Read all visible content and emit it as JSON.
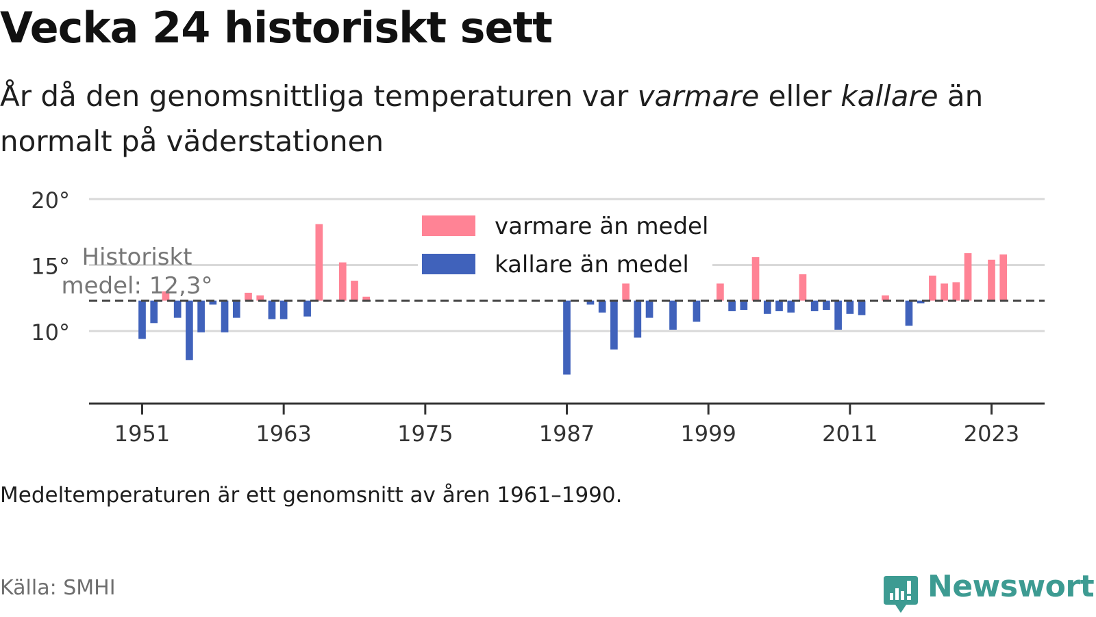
{
  "title": "Vecka 24 historiskt sett",
  "subtitle": {
    "part1": "År då den genomsnittliga temperaturen var ",
    "warm_word": "varmare",
    "part2": " eller ",
    "cold_word": "kallare",
    "part3": " än normalt på väderstationen"
  },
  "note": "Medeltemperaturen är ett genomsnitt av åren 1961–1990.",
  "source": "Källa: SMHI",
  "brand": "Newsworthy",
  "colors": {
    "warm": "#ff8395",
    "cold": "#4062bb",
    "grid": "#d9d9d9",
    "axis": "#333333",
    "reference": "#444444",
    "brand": "#3d9b92"
  },
  "chart_data": {
    "type": "bar",
    "baseline": 12.3,
    "baseline_label": [
      "Historiskt",
      "medel: 12,3°"
    ],
    "ylim": [
      4.5,
      20
    ],
    "yticks": [
      10,
      15,
      20
    ],
    "ytick_labels": [
      "10°",
      "15°",
      "20°"
    ],
    "xlim": [
      1946.5,
      2027.5
    ],
    "xticks": [
      1951,
      1963,
      1975,
      1987,
      1999,
      2011,
      2023
    ],
    "xtick_labels": [
      "1951",
      "1963",
      "1975",
      "1987",
      "1999",
      "2011",
      "2023"
    ],
    "legend": [
      {
        "key": "warm",
        "label": "varmare än medel"
      },
      {
        "key": "cold",
        "label": "kallare än medel"
      }
    ],
    "legend_position": "top-center",
    "series": [
      {
        "year": 1951,
        "value": 9.4
      },
      {
        "year": 1952,
        "value": 10.6
      },
      {
        "year": 1953,
        "value": 13.0
      },
      {
        "year": 1954,
        "value": 11.0
      },
      {
        "year": 1955,
        "value": 7.8
      },
      {
        "year": 1956,
        "value": 9.9
      },
      {
        "year": 1957,
        "value": 12.0
      },
      {
        "year": 1958,
        "value": 9.9
      },
      {
        "year": 1959,
        "value": 11.0
      },
      {
        "year": 1960,
        "value": 12.9
      },
      {
        "year": 1961,
        "value": 12.7
      },
      {
        "year": 1962,
        "value": 10.9
      },
      {
        "year": 1963,
        "value": 10.9
      },
      {
        "year": 1965,
        "value": 11.1
      },
      {
        "year": 1966,
        "value": 18.1
      },
      {
        "year": 1968,
        "value": 15.2
      },
      {
        "year": 1969,
        "value": 13.8
      },
      {
        "year": 1970,
        "value": 12.6
      },
      {
        "year": 1987,
        "value": 6.7
      },
      {
        "year": 1989,
        "value": 12.0
      },
      {
        "year": 1990,
        "value": 11.4
      },
      {
        "year": 1991,
        "value": 8.6
      },
      {
        "year": 1992,
        "value": 13.6
      },
      {
        "year": 1993,
        "value": 9.5
      },
      {
        "year": 1994,
        "value": 11.0
      },
      {
        "year": 1996,
        "value": 10.1
      },
      {
        "year": 1998,
        "value": 10.7
      },
      {
        "year": 2000,
        "value": 13.6
      },
      {
        "year": 2001,
        "value": 11.5
      },
      {
        "year": 2002,
        "value": 11.6
      },
      {
        "year": 2003,
        "value": 15.6
      },
      {
        "year": 2004,
        "value": 11.3
      },
      {
        "year": 2005,
        "value": 11.5
      },
      {
        "year": 2006,
        "value": 11.4
      },
      {
        "year": 2007,
        "value": 14.3
      },
      {
        "year": 2008,
        "value": 11.5
      },
      {
        "year": 2009,
        "value": 11.6
      },
      {
        "year": 2010,
        "value": 10.1
      },
      {
        "year": 2011,
        "value": 11.3
      },
      {
        "year": 2012,
        "value": 11.2
      },
      {
        "year": 2014,
        "value": 12.7
      },
      {
        "year": 2016,
        "value": 10.4
      },
      {
        "year": 2017,
        "value": 12.1
      },
      {
        "year": 2018,
        "value": 14.2
      },
      {
        "year": 2019,
        "value": 13.6
      },
      {
        "year": 2020,
        "value": 13.7
      },
      {
        "year": 2021,
        "value": 15.9
      },
      {
        "year": 2023,
        "value": 15.4
      },
      {
        "year": 2024,
        "value": 15.8
      }
    ]
  }
}
